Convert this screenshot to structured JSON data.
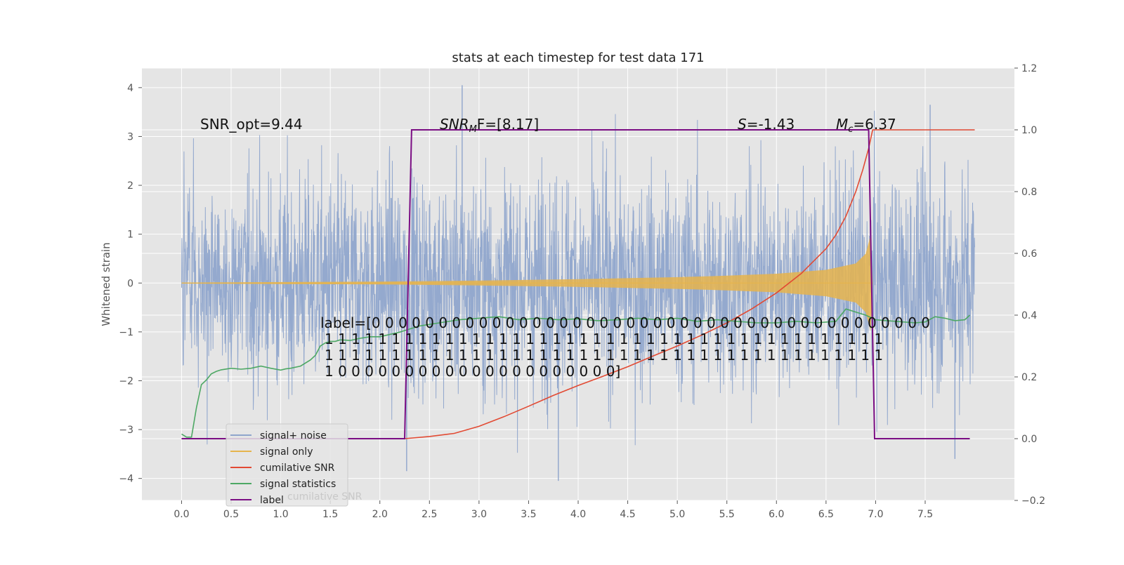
{
  "chart_data": {
    "type": "line",
    "title": "stats at each timestep for test data 171",
    "xlabel": "",
    "ylabel": "Whitened strain",
    "y2label": "",
    "xlim": [
      -0.4,
      8.4
    ],
    "ylim": [
      -4.45,
      4.4
    ],
    "y2lim": [
      -0.2,
      1.2
    ],
    "xticks": [
      "0.0",
      "0.5",
      "1.0",
      "1.5",
      "2.0",
      "2.5",
      "3.0",
      "3.5",
      "4.0",
      "4.5",
      "5.0",
      "5.5",
      "6.0",
      "6.5",
      "7.0",
      "7.5"
    ],
    "yticks": [
      "4",
      "3",
      "2",
      "1",
      "0",
      "−1",
      "−2",
      "−3",
      "−4"
    ],
    "y2ticks": [
      "1.2",
      "1.0",
      "0.8",
      "0.6",
      "0.4",
      "0.2",
      "0.0",
      "−0.2"
    ],
    "grid": true,
    "legend_position": "lower-left",
    "series": [
      {
        "name": "signal+ noise",
        "axis": "left",
        "color": "#8fa5cc",
        "x_range": [
          0.0,
          8.0
        ],
        "noise_std": 1.1,
        "notable_peaks": [
          [
            2.83,
            4.05
          ],
          [
            3.8,
            -4.05
          ],
          [
            7.55,
            3.65
          ],
          [
            2.27,
            -3.85
          ],
          [
            7.8,
            -3.6
          ]
        ]
      },
      {
        "name": "signal only",
        "axis": "left",
        "color": "#e6b44c",
        "x_range": [
          0.0,
          6.97
        ],
        "envelope": [
          [
            0.0,
            0.01
          ],
          [
            1.0,
            0.02
          ],
          [
            2.0,
            0.03
          ],
          [
            3.0,
            0.05
          ],
          [
            4.0,
            0.08
          ],
          [
            5.0,
            0.12
          ],
          [
            5.5,
            0.15
          ],
          [
            6.0,
            0.19
          ],
          [
            6.5,
            0.27
          ],
          [
            6.8,
            0.4
          ],
          [
            6.9,
            0.6
          ],
          [
            6.95,
            0.98
          ],
          [
            6.97,
            0.0
          ]
        ]
      },
      {
        "name": "cumilative SNR",
        "axis": "right",
        "color": "#e24a33",
        "x": [
          0.0,
          2.25,
          2.5,
          2.75,
          3.0,
          3.25,
          3.5,
          3.75,
          4.0,
          4.25,
          4.5,
          4.75,
          5.0,
          5.25,
          5.5,
          5.75,
          6.0,
          6.25,
          6.5,
          6.6,
          6.7,
          6.8,
          6.87,
          6.93,
          6.97,
          8.0
        ],
        "values": [
          0.0,
          0.0,
          0.007,
          0.017,
          0.04,
          0.071,
          0.105,
          0.14,
          0.172,
          0.202,
          0.233,
          0.267,
          0.3,
          0.336,
          0.375,
          0.42,
          0.472,
          0.535,
          0.615,
          0.66,
          0.72,
          0.8,
          0.87,
          0.94,
          1.0,
          1.0
        ]
      },
      {
        "name": "signal statistics",
        "axis": "right",
        "color": "#4da864",
        "x": [
          0.0,
          0.05,
          0.1,
          0.15,
          0.2,
          0.25,
          0.3,
          0.35,
          0.4,
          0.5,
          0.6,
          0.7,
          0.8,
          0.9,
          1.0,
          1.05,
          1.1,
          1.2,
          1.3,
          1.35,
          1.4,
          1.45,
          1.5,
          1.55,
          1.6,
          1.7,
          1.8,
          1.9,
          2.0,
          2.2,
          2.4,
          2.6,
          2.8,
          3.0,
          3.2,
          3.4,
          3.6,
          3.8,
          4.0,
          4.2,
          4.4,
          4.6,
          4.8,
          5.0,
          5.2,
          5.4,
          5.6,
          5.8,
          6.0,
          6.2,
          6.4,
          6.6,
          6.7,
          6.8,
          6.9,
          7.0,
          7.2,
          7.4,
          7.5,
          7.6,
          7.7,
          7.8,
          7.9,
          7.95
        ],
        "values": [
          0.015,
          0.005,
          0.005,
          0.1,
          0.175,
          0.19,
          0.21,
          0.218,
          0.223,
          0.228,
          0.225,
          0.228,
          0.235,
          0.228,
          0.222,
          0.226,
          0.228,
          0.235,
          0.255,
          0.27,
          0.3,
          0.31,
          0.315,
          0.315,
          0.32,
          0.318,
          0.325,
          0.33,
          0.33,
          0.345,
          0.365,
          0.375,
          0.385,
          0.39,
          0.395,
          0.385,
          0.39,
          0.385,
          0.388,
          0.382,
          0.385,
          0.39,
          0.385,
          0.39,
          0.38,
          0.385,
          0.38,
          0.375,
          0.375,
          0.38,
          0.375,
          0.38,
          0.42,
          0.41,
          0.4,
          0.385,
          0.38,
          0.375,
          0.378,
          0.395,
          0.39,
          0.382,
          0.385,
          0.4
        ]
      },
      {
        "name": "label",
        "axis": "right",
        "color": "#7b0e84",
        "x": [
          0.0,
          2.25,
          2.32,
          6.93,
          6.99,
          7.95
        ],
        "values": [
          0.0,
          0.0,
          1.0,
          1.0,
          0.0,
          0.0
        ]
      }
    ],
    "annotations": [
      {
        "id": "snr-opt",
        "text": "SNR_opt=9.44"
      },
      {
        "id": "snr-mf",
        "prefix": "SNR",
        "sub": "M",
        "suffix": "F=[8.17]"
      },
      {
        "id": "s-value",
        "prefix": "S",
        "suffix": "=-1.43"
      },
      {
        "id": "mc-value",
        "prefix": "M",
        "sub": "c",
        "suffix": "=6.37"
      }
    ],
    "label_text_lines": [
      "label=[0 0 0 0 0 0 0 0 0 0 0 0 0 0 0 0 0 0 0 0 0 0 0 0 0 0 0 0 0 0 0 0 0 0 0 0 0 0 0 0 0 0",
      "1 1 1 1 1 1 1 1 1 1 1 1 1 1 1 1 1 1 1 1 1 1 1 1 1 1 1 1 1 1 1 1 1 1 1 1 1 1 1 1 1 1",
      "1 1 1 1 1 1 1 1 1 1 1 1 1 1 1 1 1 1 1 1 1 1 1 1 1 1 1 1 1 1 1 1 1 1 1 1 1 1 1 1 1 1",
      "1 0 0 0 0 0 0 0 0 0 0 0 0 0 0 0 0 0 0 0 0 0]"
    ],
    "legend_ghost_text": "cumilative SNR"
  }
}
